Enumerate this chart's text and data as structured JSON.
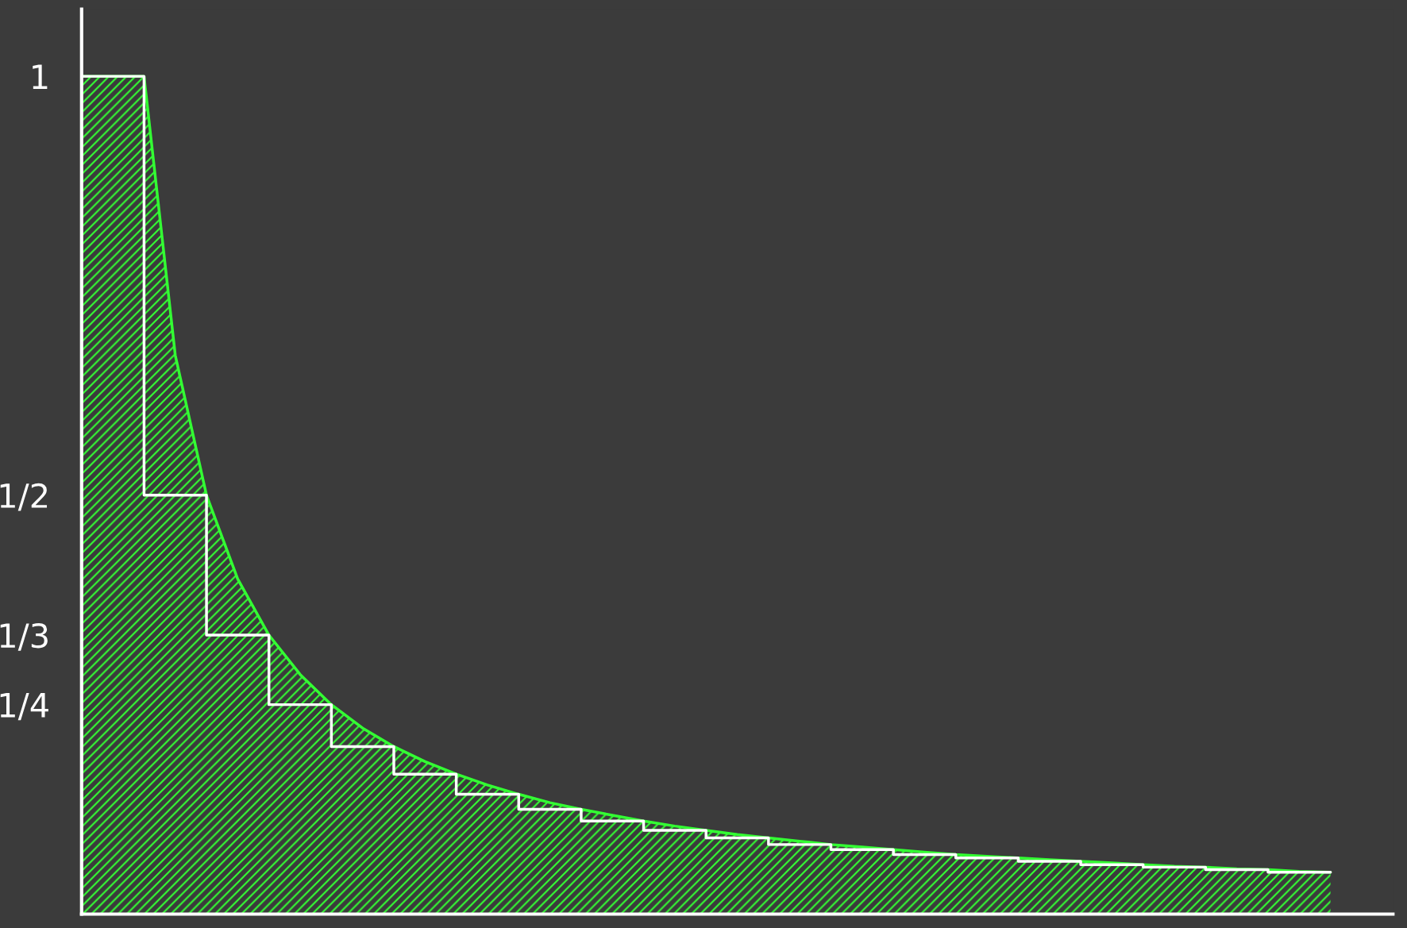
{
  "chart_data": {
    "type": "area",
    "tick_labels": "y",
    "grid": false,
    "categories": [
      null,
      null,
      null,
      null,
      null,
      null,
      null,
      null,
      null,
      null,
      null,
      null,
      null,
      null,
      null,
      null,
      null,
      null,
      null,
      null,
      null,
      null,
      null,
      null,
      null,
      null,
      null,
      null,
      null,
      null,
      null,
      null,
      null,
      null,
      null,
      null,
      null,
      null,
      null,
      null,
      null
    ],
    "ylim": [
      0,
      1.08
    ],
    "yticks": [
      {
        "value": 0.25,
        "label": "1/4"
      },
      {
        "value": 0.333,
        "label": "1/3"
      },
      {
        "value": 0.5,
        "label": "1/2"
      },
      1
    ],
    "series": [
      {
        "color": "#33ff33",
        "values": [
          1,
          1,
          1,
          0.667,
          0.5,
          0.4,
          0.333,
          0.286,
          0.25,
          0.222,
          0.2,
          0.182,
          0.167,
          0.154,
          0.143,
          0.133,
          0.125,
          0.118,
          0.111,
          0.105,
          0.1,
          0.095,
          0.091,
          0.087,
          0.083,
          0.08,
          0.077,
          0.074,
          0.071,
          0.069,
          0.067,
          0.065,
          0.063,
          0.061,
          0.059,
          0.057,
          0.056,
          0.054,
          0.053,
          0.051,
          0.05
        ]
      },
      {
        "type": "step",
        "color": "#ffffff",
        "values": [
          1,
          1,
          0.5,
          0.5,
          0.333,
          0.333,
          0.25,
          0.25,
          0.2,
          0.2,
          0.167,
          0.167,
          0.143,
          0.143,
          0.125,
          0.125,
          0.111,
          0.111,
          0.1,
          0.1,
          0.091,
          0.091,
          0.083,
          0.083,
          0.077,
          0.077,
          0.071,
          0.071,
          0.067,
          0.067,
          0.063,
          0.063,
          0.059,
          0.059,
          0.056,
          0.056,
          0.053,
          0.053,
          0.05,
          0.05,
          0.05
        ]
      }
    ]
  }
}
